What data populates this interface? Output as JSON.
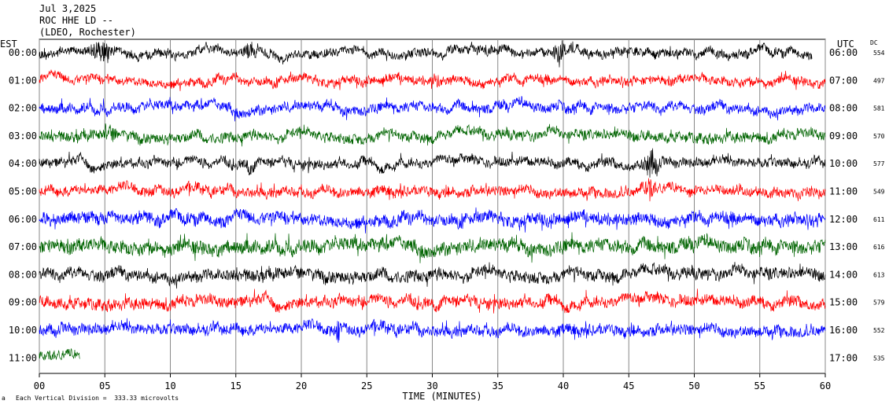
{
  "header": {
    "date": "Jul 3,2025",
    "station": "ROC HHE LD --",
    "network": "(LDEO, Rochester)"
  },
  "labels": {
    "left_tz": "EST",
    "right_tz": "UTC",
    "dc_header": "DC",
    "footer_scale": "Each Vertical Division =  333.33 microvolts",
    "footer_mark": "a"
  },
  "chart_data": {
    "type": "line",
    "title": "ROC HHE LD --",
    "xlabel": "TIME (MINUTES)",
    "xlim": [
      0,
      60
    ],
    "x_ticks": [
      "00",
      "05",
      "10",
      "15",
      "20",
      "25",
      "30",
      "35",
      "40",
      "45",
      "50",
      "55",
      "60"
    ],
    "grid": true,
    "series": [
      {
        "est": "00:00",
        "utc": "06:00",
        "dc": "554",
        "color": "#000000",
        "end_minute": 59,
        "amplitude": 0.28,
        "events": [
          {
            "t": 4.7,
            "a": 0.6,
            "w": 1.2
          },
          {
            "t": 16.2,
            "a": 0.45,
            "w": 0.8
          },
          {
            "t": 39.7,
            "a": 0.65,
            "w": 0.7
          }
        ]
      },
      {
        "est": "01:00",
        "utc": "07:00",
        "dc": "497",
        "color": "#ff0000",
        "end_minute": 60,
        "amplitude": 0.28,
        "events": [
          {
            "t": 30.3,
            "a": 0.35,
            "w": 0.4
          }
        ]
      },
      {
        "est": "02:00",
        "utc": "08:00",
        "dc": "581",
        "color": "#0000ff",
        "end_minute": 60,
        "amplitude": 0.32,
        "events": []
      },
      {
        "est": "03:00",
        "utc": "09:00",
        "dc": "570",
        "color": "#006400",
        "end_minute": 60,
        "amplitude": 0.32,
        "events": [
          {
            "t": 5.3,
            "a": 0.5,
            "w": 0.6
          }
        ]
      },
      {
        "est": "04:00",
        "utc": "10:00",
        "dc": "577",
        "color": "#000000",
        "end_minute": 60,
        "amplitude": 0.3,
        "events": [
          {
            "t": 46.7,
            "a": 0.85,
            "w": 0.8
          },
          {
            "t": 16.0,
            "a": 0.35,
            "w": 0.5
          }
        ]
      },
      {
        "est": "05:00",
        "utc": "11:00",
        "dc": "549",
        "color": "#ff0000",
        "end_minute": 60,
        "amplitude": 0.32,
        "events": [
          {
            "t": 46.5,
            "a": 0.6,
            "w": 0.6
          }
        ]
      },
      {
        "est": "06:00",
        "utc": "12:00",
        "dc": "611",
        "color": "#0000ff",
        "end_minute": 60,
        "amplitude": 0.4,
        "events": []
      },
      {
        "est": "07:00",
        "utc": "13:00",
        "dc": "616",
        "color": "#006400",
        "end_minute": 60,
        "amplitude": 0.45,
        "events": []
      },
      {
        "est": "08:00",
        "utc": "14:00",
        "dc": "613",
        "color": "#000000",
        "end_minute": 60,
        "amplitude": 0.38,
        "events": []
      },
      {
        "est": "09:00",
        "utc": "15:00",
        "dc": "579",
        "color": "#ff0000",
        "end_minute": 60,
        "amplitude": 0.36,
        "events": []
      },
      {
        "est": "10:00",
        "utc": "16:00",
        "dc": "552",
        "color": "#0000ff",
        "end_minute": 60,
        "amplitude": 0.36,
        "events": [
          {
            "t": 22.8,
            "a": 0.9,
            "w": 0.15
          }
        ]
      },
      {
        "est": "11:00",
        "utc": "17:00",
        "dc": "535",
        "color": "#006400",
        "end_minute": 3.1,
        "amplitude": 0.3,
        "events": []
      }
    ]
  }
}
